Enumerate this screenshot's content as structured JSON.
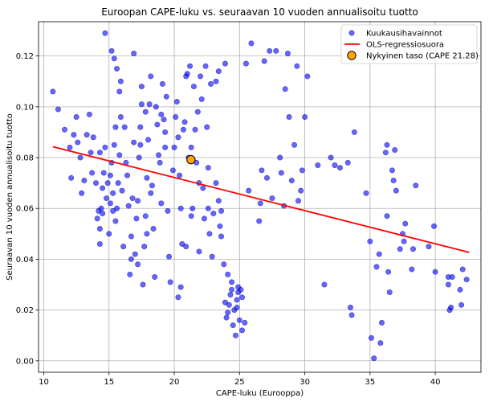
{
  "chart_data": {
    "type": "scatter",
    "title": "Euroopan CAPE-luku vs. seuraavan 10 vuoden annualisoitu tuotto",
    "xlabel": "CAPE-luku (Eurooppa)",
    "ylabel": "Seuraavan 10 vuoden annualisoitu tuotto",
    "xlim": [
      9.6,
      43.5
    ],
    "ylim": [
      -0.0045,
      0.1335
    ],
    "xticks": [
      10,
      15,
      20,
      25,
      30,
      35,
      40
    ],
    "yticks": [
      0.0,
      0.02,
      0.04,
      0.06,
      0.08,
      0.1,
      0.12
    ],
    "xtick_labels": [
      "10",
      "15",
      "20",
      "25",
      "30",
      "35",
      "40"
    ],
    "ytick_labels": [
      "0.00",
      "0.02",
      "0.04",
      "0.06",
      "0.08",
      "0.10",
      "0.12"
    ],
    "grid": true,
    "legend_position": "top-right",
    "colors": {
      "points": "#0000ff",
      "points_edge": "#00008b",
      "regression": "#ff0000",
      "current": "#ffa500",
      "current_edge": "#000000",
      "grid": "#b0b0b0"
    },
    "series": [
      {
        "name": "Kuukausihavainnot",
        "kind": "scatter",
        "points": [
          [
            10.7,
            0.106
          ],
          [
            11.1,
            0.099
          ],
          [
            11.6,
            0.091
          ],
          [
            12.0,
            0.084
          ],
          [
            12.1,
            0.072
          ],
          [
            12.3,
            0.089
          ],
          [
            12.5,
            0.096
          ],
          [
            12.6,
            0.086
          ],
          [
            12.8,
            0.08
          ],
          [
            12.9,
            0.066
          ],
          [
            13.1,
            0.071
          ],
          [
            13.3,
            0.089
          ],
          [
            13.5,
            0.097
          ],
          [
            13.6,
            0.082
          ],
          [
            13.7,
            0.074
          ],
          [
            13.8,
            0.088
          ],
          [
            14.0,
            0.07
          ],
          [
            14.2,
            0.059
          ],
          [
            14.3,
            0.046
          ],
          [
            14.3,
            0.052
          ],
          [
            14.4,
            0.06
          ],
          [
            14.5,
            0.058
          ],
          [
            14.5,
            0.068
          ],
          [
            14.6,
            0.074
          ],
          [
            14.7,
            0.084
          ],
          [
            14.8,
            0.064
          ],
          [
            14.9,
            0.07
          ],
          [
            14.3,
            0.082
          ],
          [
            14.1,
            0.056
          ],
          [
            15.0,
            0.05
          ],
          [
            15.1,
            0.062
          ],
          [
            15.1,
            0.073
          ],
          [
            15.2,
            0.078
          ],
          [
            15.3,
            0.059
          ],
          [
            15.3,
            0.066
          ],
          [
            15.4,
            0.085
          ],
          [
            15.5,
            0.055
          ],
          [
            15.5,
            0.092
          ],
          [
            15.6,
            0.06
          ],
          [
            15.7,
            0.07
          ],
          [
            15.8,
            0.081
          ],
          [
            15.9,
            0.11
          ],
          [
            15.2,
            0.122
          ],
          [
            15.4,
            0.119
          ],
          [
            15.6,
            0.115
          ],
          [
            15.8,
            0.106
          ],
          [
            16.0,
            0.067
          ],
          [
            16.1,
            0.045
          ],
          [
            16.2,
            0.092
          ],
          [
            16.3,
            0.078
          ],
          [
            16.5,
            0.061
          ],
          [
            16.6,
            0.034
          ],
          [
            16.7,
            0.049
          ],
          [
            16.8,
            0.064
          ],
          [
            16.9,
            0.086
          ],
          [
            16.9,
            0.121
          ],
          [
            15.9,
            0.096
          ],
          [
            16.4,
            0.073
          ],
          [
            16.7,
            0.04
          ],
          [
            14.7,
            0.129
          ],
          [
            17.0,
            0.042
          ],
          [
            17.1,
            0.056
          ],
          [
            17.2,
            0.063
          ],
          [
            17.3,
            0.08
          ],
          [
            17.4,
            0.092
          ],
          [
            17.5,
            0.108
          ],
          [
            17.6,
            0.03
          ],
          [
            17.7,
            0.045
          ],
          [
            17.8,
            0.057
          ],
          [
            17.9,
            0.072
          ],
          [
            18.0,
            0.087
          ],
          [
            18.1,
            0.101
          ],
          [
            18.2,
            0.112
          ],
          [
            18.3,
            0.069
          ],
          [
            18.4,
            0.052
          ],
          [
            18.5,
            0.033
          ],
          [
            17.5,
            0.101
          ],
          [
            17.8,
            0.098
          ],
          [
            18.7,
            0.093
          ],
          [
            18.8,
            0.081
          ],
          [
            18.9,
            0.078
          ],
          [
            19.0,
            0.062
          ],
          [
            19.1,
            0.109
          ],
          [
            19.2,
            0.095
          ],
          [
            19.3,
            0.084
          ],
          [
            19.4,
            0.104
          ],
          [
            19.5,
            0.059
          ],
          [
            19.6,
            0.041
          ],
          [
            19.7,
            0.031
          ],
          [
            19.9,
            0.075
          ],
          [
            18.6,
            0.1
          ],
          [
            17.2,
            0.038
          ],
          [
            17.4,
            0.085
          ],
          [
            17.9,
            0.05
          ],
          [
            18.2,
            0.066
          ],
          [
            19.0,
            0.097
          ],
          [
            19.3,
            0.09
          ],
          [
            20.0,
            0.084
          ],
          [
            20.1,
            0.096
          ],
          [
            20.2,
            0.102
          ],
          [
            20.3,
            0.088
          ],
          [
            20.4,
            0.073
          ],
          [
            20.5,
            0.06
          ],
          [
            20.6,
            0.046
          ],
          [
            20.7,
            0.091
          ],
          [
            20.8,
            0.094
          ],
          [
            20.9,
            0.112
          ],
          [
            21.0,
            0.113
          ],
          [
            21.1,
            0.08
          ],
          [
            21.2,
            0.116
          ],
          [
            21.3,
            0.084
          ],
          [
            21.4,
            0.06
          ],
          [
            21.5,
            0.108
          ],
          [
            21.6,
            0.091
          ],
          [
            21.7,
            0.078
          ],
          [
            21.8,
            0.098
          ],
          [
            21.9,
            0.07
          ],
          [
            22.0,
            0.112
          ],
          [
            22.1,
            0.103
          ],
          [
            22.2,
            0.068
          ],
          [
            22.3,
            0.056
          ],
          [
            22.4,
            0.116
          ],
          [
            22.5,
            0.092
          ],
          [
            22.6,
            0.076
          ],
          [
            22.7,
            0.05
          ],
          [
            22.8,
            0.109
          ],
          [
            22.9,
            0.041
          ],
          [
            20.3,
            0.025
          ],
          [
            20.5,
            0.029
          ],
          [
            20.9,
            0.045
          ],
          [
            21.3,
            0.057
          ],
          [
            21.9,
            0.043
          ],
          [
            22.6,
            0.06
          ],
          [
            23.2,
            0.11
          ],
          [
            23.4,
            0.114
          ],
          [
            23.6,
            0.059
          ],
          [
            23.9,
            0.117
          ],
          [
            23.0,
            0.058
          ],
          [
            23.2,
            0.07
          ],
          [
            23.4,
            0.063
          ],
          [
            23.5,
            0.053
          ],
          [
            23.6,
            0.049
          ],
          [
            23.8,
            0.038
          ],
          [
            23.9,
            0.023
          ],
          [
            24.0,
            0.017
          ],
          [
            24.1,
            0.019
          ],
          [
            24.2,
            0.022
          ],
          [
            24.3,
            0.026
          ],
          [
            24.4,
            0.031
          ],
          [
            24.5,
            0.014
          ],
          [
            24.6,
            0.02
          ],
          [
            24.7,
            0.01
          ],
          [
            24.8,
            0.024
          ],
          [
            24.9,
            0.029
          ],
          [
            25.0,
            0.016
          ],
          [
            25.1,
            0.028
          ],
          [
            25.2,
            0.012
          ],
          [
            25.4,
            0.015
          ],
          [
            25.5,
            0.117
          ],
          [
            25.7,
            0.067
          ],
          [
            25.9,
            0.125
          ],
          [
            24.4,
            0.028
          ],
          [
            24.8,
            0.021
          ],
          [
            25.2,
            0.025
          ],
          [
            24.1,
            0.034
          ],
          [
            24.9,
            0.027
          ],
          [
            26.5,
            0.055
          ],
          [
            26.6,
            0.062
          ],
          [
            26.7,
            0.075
          ],
          [
            26.9,
            0.118
          ],
          [
            27.1,
            0.072
          ],
          [
            27.3,
            0.122
          ],
          [
            27.5,
            0.064
          ],
          [
            27.8,
            0.122
          ],
          [
            28.1,
            0.08
          ],
          [
            28.2,
            0.074
          ],
          [
            28.4,
            0.061
          ],
          [
            28.5,
            0.107
          ],
          [
            28.7,
            0.121
          ],
          [
            28.8,
            0.096
          ],
          [
            29.0,
            0.071
          ],
          [
            29.2,
            0.085
          ],
          [
            29.4,
            0.116
          ],
          [
            29.5,
            0.063
          ],
          [
            29.7,
            0.067
          ],
          [
            29.8,
            0.075
          ],
          [
            30.0,
            0.096
          ],
          [
            30.2,
            0.112
          ],
          [
            31.0,
            0.077
          ],
          [
            31.5,
            0.03
          ],
          [
            32.0,
            0.08
          ],
          [
            32.3,
            0.077
          ],
          [
            32.7,
            0.076
          ],
          [
            33.3,
            0.078
          ],
          [
            33.5,
            0.021
          ],
          [
            33.6,
            0.018
          ],
          [
            33.8,
            0.09
          ],
          [
            34.7,
            0.066
          ],
          [
            35.0,
            0.047
          ],
          [
            35.1,
            0.009
          ],
          [
            35.3,
            0.001
          ],
          [
            35.5,
            0.037
          ],
          [
            35.7,
            0.042
          ],
          [
            35.8,
            0.007
          ],
          [
            35.9,
            0.015
          ],
          [
            36.2,
            0.082
          ],
          [
            36.3,
            0.085
          ],
          [
            36.3,
            0.057
          ],
          [
            36.4,
            0.035
          ],
          [
            36.5,
            0.027
          ],
          [
            36.7,
            0.075
          ],
          [
            36.8,
            0.071
          ],
          [
            36.9,
            0.083
          ],
          [
            37.0,
            0.067
          ],
          [
            37.3,
            0.044
          ],
          [
            37.5,
            0.05
          ],
          [
            37.7,
            0.054
          ],
          [
            37.6,
            0.047
          ],
          [
            38.2,
            0.036
          ],
          [
            38.3,
            0.044
          ],
          [
            38.5,
            0.069
          ],
          [
            39.5,
            0.045
          ],
          [
            39.9,
            0.053
          ],
          [
            40.0,
            0.035
          ],
          [
            41.0,
            0.03
          ],
          [
            41.1,
            0.02
          ],
          [
            41.3,
            0.033
          ],
          [
            41.9,
            0.028
          ],
          [
            42.0,
            0.022
          ],
          [
            42.1,
            0.036
          ],
          [
            42.4,
            0.032
          ],
          [
            41.0,
            0.033
          ],
          [
            41.2,
            0.021
          ]
        ]
      },
      {
        "name": "OLS-regressiosuora",
        "kind": "line",
        "points": [
          [
            10.7,
            0.0843
          ],
          [
            42.6,
            0.0427
          ]
        ]
      },
      {
        "name": "Nykyinen taso (CAPE 21.28)",
        "kind": "highlight",
        "points": [
          [
            21.28,
            0.0792
          ]
        ]
      }
    ]
  }
}
